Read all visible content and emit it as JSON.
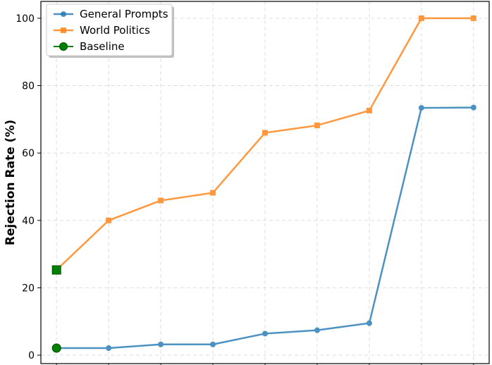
{
  "chart_data": {
    "type": "line",
    "title": "",
    "xlabel": "",
    "ylabel": "Rejection Rate (%)",
    "ylim": [
      -2.5,
      105
    ],
    "xlim": [
      -0.3,
      8.3
    ],
    "yticks": [
      0,
      20,
      40,
      60,
      80,
      100
    ],
    "grid": true,
    "legend_position": "top-left",
    "x": [
      0,
      1,
      2,
      3,
      4,
      5,
      6,
      7,
      8
    ],
    "series": [
      {
        "name": "General Prompts",
        "color": "#1f77b4",
        "marker": "circle",
        "values": [
          2.1,
          2.1,
          3.2,
          3.2,
          6.4,
          7.4,
          9.5,
          73.4,
          73.5
        ]
      },
      {
        "name": "World Politics",
        "color": "#ff7f0e",
        "marker": "square",
        "values": [
          25.3,
          40.0,
          45.9,
          48.2,
          66.0,
          68.2,
          72.6,
          100.0,
          100.0
        ]
      }
    ],
    "baseline": {
      "name": "Baseline",
      "color": "#008000",
      "points": [
        {
          "x": 0,
          "y": 2.1,
          "marker": "circle"
        },
        {
          "x": 0,
          "y": 25.3,
          "marker": "square"
        }
      ]
    }
  }
}
